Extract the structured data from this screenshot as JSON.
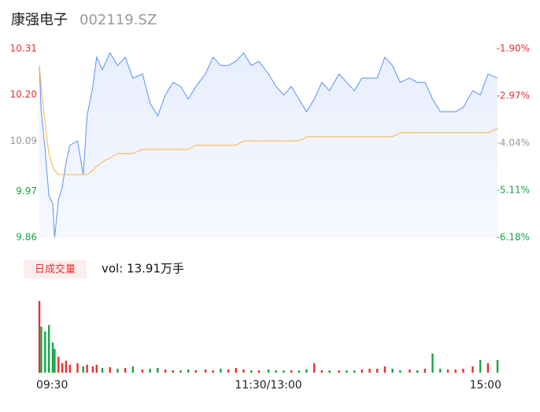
{
  "chart_data": [
    {
      "type": "line",
      "title": "康强电子",
      "subtitle": "002119.SZ",
      "x": [
        0,
        1,
        3,
        5,
        7,
        8,
        10,
        12,
        14,
        16,
        20,
        23,
        25,
        28,
        30,
        33,
        37,
        41,
        45,
        49,
        54,
        58,
        62,
        66,
        70,
        74,
        78,
        82,
        87,
        91,
        95,
        99,
        103,
        107,
        111,
        115,
        120,
        124,
        128,
        132,
        136,
        140,
        144,
        148,
        152,
        157,
        161,
        165,
        169,
        173,
        177,
        181,
        185,
        189,
        194,
        198,
        202,
        206,
        210,
        214,
        218,
        222,
        227,
        231,
        235,
        240
      ],
      "xlim": [
        0,
        240
      ],
      "ylim": [
        9.86,
        10.31
      ],
      "yticks": [
        9.86,
        9.97,
        10.09,
        {
          "value": 10.2,
          "label": "10.20"
        },
        10.31
      ],
      "ytick_colors": [
        "#1aa34a",
        "#1aa34a",
        "#999999",
        "#e83030",
        "#e83030"
      ],
      "y2lim": [
        -6.18,
        -1.9
      ],
      "y2ticks": [
        {
          "value": -6.18,
          "label": "-6.18%"
        },
        {
          "value": -5.11,
          "label": "-5.11%"
        },
        {
          "value": -4.04,
          "label": "-4.04%"
        },
        {
          "value": -2.97,
          "label": "-2.97%"
        },
        {
          "value": -1.9,
          "label": "-1.90%"
        }
      ],
      "y2tick_colors": [
        "#1aa34a",
        "#1aa34a",
        "#999999",
        "#e83030",
        "#e83030"
      ],
      "series": [
        {
          "color": "#5b8ff9",
          "fill": true,
          "values": [
            10.27,
            10.16,
            10.07,
            9.96,
            9.94,
            9.86,
            9.95,
            9.98,
            10.04,
            10.08,
            10.09,
            10.01,
            10.15,
            10.22,
            10.29,
            10.26,
            10.3,
            10.27,
            10.29,
            10.24,
            10.25,
            10.18,
            10.15,
            10.2,
            10.23,
            10.22,
            10.19,
            10.22,
            10.25,
            10.29,
            10.27,
            10.27,
            10.28,
            10.3,
            10.27,
            10.28,
            10.25,
            10.22,
            10.2,
            10.22,
            10.19,
            10.16,
            10.19,
            10.23,
            10.21,
            10.25,
            10.23,
            10.21,
            10.24,
            10.24,
            10.24,
            10.29,
            10.27,
            10.23,
            10.24,
            10.23,
            10.23,
            10.19,
            10.16,
            10.16,
            10.16,
            10.17,
            10.21,
            10.2,
            10.25,
            10.24
          ]
        },
        {
          "color": "#f4b63f",
          "values": [
            10.27,
            10.22,
            10.13,
            10.06,
            10.03,
            10.02,
            10.01,
            10.01,
            10.01,
            10.01,
            10.01,
            10.01,
            10.01,
            10.02,
            10.03,
            10.04,
            10.05,
            10.06,
            10.06,
            10.06,
            10.07,
            10.07,
            10.07,
            10.07,
            10.07,
            10.07,
            10.07,
            10.08,
            10.08,
            10.08,
            10.08,
            10.08,
            10.08,
            10.09,
            10.09,
            10.09,
            10.09,
            10.09,
            10.09,
            10.09,
            10.09,
            10.1,
            10.1,
            10.1,
            10.1,
            10.1,
            10.1,
            10.1,
            10.1,
            10.1,
            10.1,
            10.1,
            10.1,
            10.11,
            10.11,
            10.11,
            10.11,
            10.11,
            10.11,
            10.11,
            10.11,
            10.11,
            10.11,
            10.11,
            10.11,
            10.12
          ]
        }
      ]
    },
    {
      "type": "bar",
      "title": "日成交量",
      "subtitle": "vol: 13.91万手",
      "x": [
        0,
        1,
        3,
        5,
        7,
        8,
        10,
        12,
        14,
        16,
        20,
        23,
        25,
        28,
        30,
        33,
        37,
        41,
        45,
        49,
        54,
        58,
        62,
        66,
        70,
        74,
        78,
        82,
        87,
        91,
        95,
        99,
        103,
        107,
        111,
        115,
        120,
        124,
        128,
        132,
        136,
        140,
        144,
        148,
        152,
        157,
        161,
        165,
        169,
        173,
        177,
        181,
        185,
        189,
        194,
        198,
        202,
        206,
        210,
        214,
        218,
        222,
        227,
        231,
        235,
        240
      ],
      "xlim": [
        0,
        240
      ],
      "xticks": [
        {
          "value": 0,
          "label": "09:30"
        },
        {
          "value": 120,
          "label": "11:30/13:00"
        },
        {
          "value": 240,
          "label": "15:00"
        }
      ],
      "values": [
        90,
        58,
        52,
        60,
        38,
        30,
        20,
        12,
        15,
        10,
        12,
        8,
        10,
        8,
        10,
        6,
        7,
        5,
        6,
        8,
        4,
        5,
        6,
        4,
        3,
        3,
        4,
        3,
        4,
        3,
        5,
        4,
        6,
        4,
        3,
        3,
        4,
        3,
        3,
        3,
        3,
        4,
        12,
        3,
        3,
        3,
        3,
        3,
        4,
        5,
        5,
        8,
        5,
        3,
        4,
        3,
        5,
        24,
        5,
        4,
        4,
        5,
        8,
        16,
        12,
        16
      ],
      "up_color": "#e83030",
      "down_color": "#1aa34a"
    }
  ]
}
